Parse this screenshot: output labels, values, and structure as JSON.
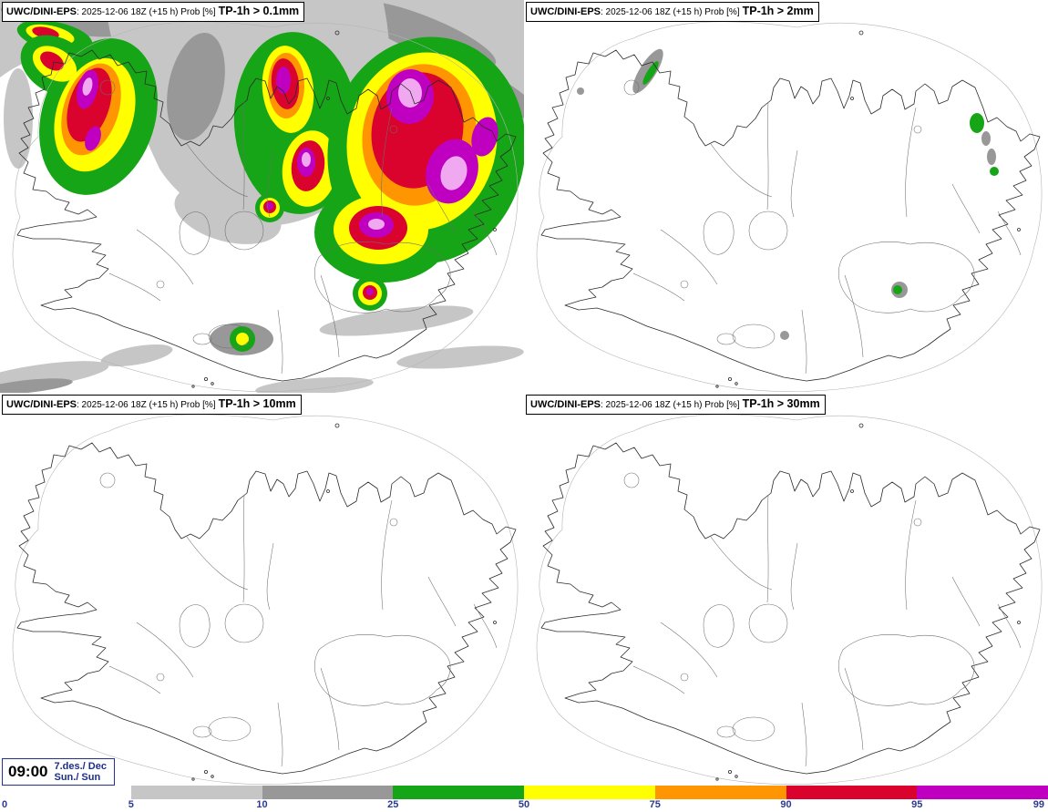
{
  "panels": [
    {
      "model": "UWC/DINI-EPS",
      "meta": ": 2025-12-06 18Z (+15 h) Prob [%]",
      "threshold": "TP-1h > 0.1mm"
    },
    {
      "model": "UWC/DINI-EPS",
      "meta": ": 2025-12-06 18Z (+15 h) Prob [%]",
      "threshold": "TP-1h > 2mm"
    },
    {
      "model": "UWC/DINI-EPS",
      "meta": ": 2025-12-06 18Z (+15 h) Prob [%]",
      "threshold": "TP-1h > 10mm"
    },
    {
      "model": "UWC/DINI-EPS",
      "meta": ": 2025-12-06 18Z (+15 h) Prob [%]",
      "threshold": "TP-1h > 30mm"
    }
  ],
  "footer": {
    "time": "09:00",
    "date": "7.des./ Dec",
    "day": "Sun./ Sun"
  },
  "palette": {
    "gray1": "#c6c6c6",
    "gray2": "#989898",
    "green": "#16a516",
    "yellow": "#ffff00",
    "orange": "#ff9500",
    "red": "#d9032e",
    "magenta": "#c000c0",
    "violet": "#f0a8f0"
  },
  "colorbar": {
    "ticks": [
      "0",
      "5",
      "10",
      "25",
      "50",
      "75",
      "90",
      "95",
      "99"
    ],
    "segments": [
      {
        "range": "0-5",
        "color": "#ffffff"
      },
      {
        "range": "5-10",
        "color": "#c6c6c6"
      },
      {
        "range": "10-25",
        "color": "#989898"
      },
      {
        "range": "25-50",
        "color": "#16a516"
      },
      {
        "range": "50-75",
        "color": "#ffff00"
      },
      {
        "range": "75-90",
        "color": "#ff9500"
      },
      {
        "range": "90-95",
        "color": "#d9032e"
      },
      {
        "range": "95-99",
        "color": "#c000c0"
      }
    ]
  }
}
